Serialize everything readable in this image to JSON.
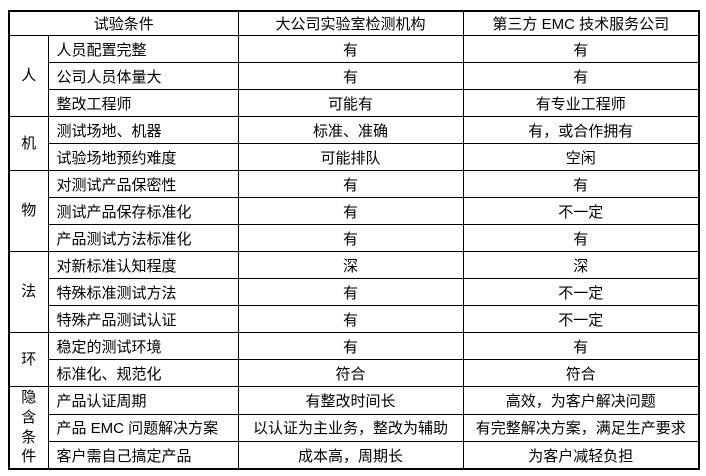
{
  "table": {
    "header": {
      "col_condition": "试验条件",
      "col_lab": "大公司实验室检测机构",
      "col_third_party": "第三方 EMC 技术服务公司"
    },
    "groups": [
      {
        "category": "人",
        "rows": [
          {
            "condition": "人员配置完整",
            "lab": "有",
            "third_party": "有"
          },
          {
            "condition": "公司人员体量大",
            "lab": "有",
            "third_party": "有"
          },
          {
            "condition": "整改工程师",
            "lab": "可能有",
            "third_party": "有专业工程师"
          }
        ]
      },
      {
        "category": "机",
        "rows": [
          {
            "condition": "测试场地、机器",
            "lab": "标准、准确",
            "third_party": "有，或合作拥有"
          },
          {
            "condition": "试验场地预约难度",
            "lab": "可能排队",
            "third_party": "空闲"
          }
        ]
      },
      {
        "category": "物",
        "rows": [
          {
            "condition": "对测试产品保密性",
            "lab": "有",
            "third_party": "有"
          },
          {
            "condition": "测试产品保存标准化",
            "lab": "有",
            "third_party": "不一定"
          },
          {
            "condition": "产品测试方法标准化",
            "lab": "有",
            "third_party": "有"
          }
        ]
      },
      {
        "category": "法",
        "rows": [
          {
            "condition": "对新标准认知程度",
            "lab": "深",
            "third_party": "深"
          },
          {
            "condition": "特殊标准测试方法",
            "lab": "有",
            "third_party": "不一定"
          },
          {
            "condition": "特殊产品测试认证",
            "lab": "有",
            "third_party": "不一定"
          }
        ]
      },
      {
        "category": "环",
        "rows": [
          {
            "condition": "稳定的测试环境",
            "lab": "有",
            "third_party": "有"
          },
          {
            "condition": "标准化、规范化",
            "lab": "符合",
            "third_party": "符合"
          }
        ]
      },
      {
        "category": "隐含条件",
        "rows": [
          {
            "condition": "产品认证周期",
            "lab": "有整改时间长",
            "third_party": "高效，为客户解决问题"
          },
          {
            "condition": "产品 EMC 问题解决方案",
            "lab": "以认证为主业务，整改为辅助",
            "third_party": "有完整解决方案，满足生产要求"
          },
          {
            "condition": "客户需自己搞定产品",
            "lab": "成本高，周期长",
            "third_party": "为客户减轻负担"
          }
        ]
      }
    ],
    "colors": {
      "border": "#000000",
      "background": "#ffffff",
      "text": "#000000"
    }
  }
}
